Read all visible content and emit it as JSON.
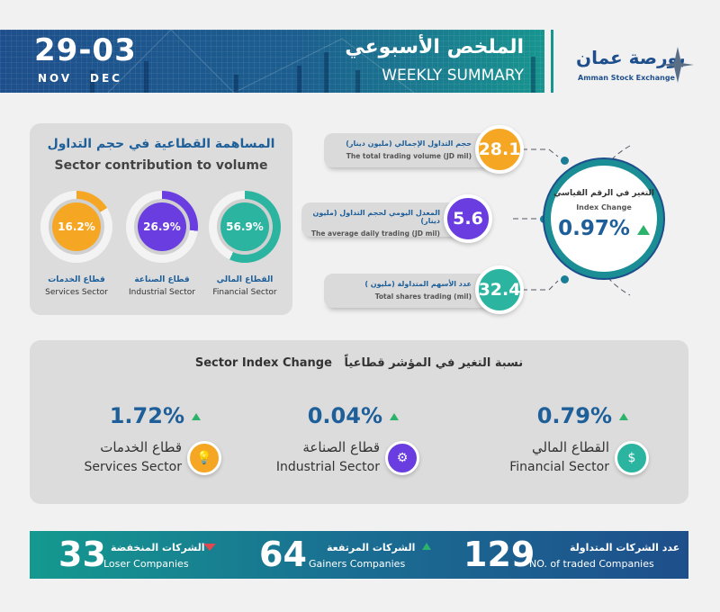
{
  "header": {
    "date_range": "29-03",
    "month_start": "NOV",
    "month_end": "DEC",
    "title_ar": "الملخص الأسبوعي",
    "title_en": "WEEKLY SUMMARY",
    "logo_ar": "بورصة عمان",
    "logo_en": "Amman Stock Exchange"
  },
  "contribution": {
    "title_ar": "المساهمة القطاعية في حجم التداول",
    "title_en": "Sector contribution to volume",
    "sectors": [
      {
        "value": "16.2%",
        "percent": 16.2,
        "name_ar": "قطاع الخدمات",
        "name_en": "Services Sector",
        "color": "#f5a623"
      },
      {
        "value": "26.9%",
        "percent": 26.9,
        "name_ar": "قطاع الصناعة",
        "name_en": "Industrial Sector",
        "color": "#6a3de0"
      },
      {
        "value": "56.9%",
        "percent": 56.9,
        "name_ar": "القطاع المالي",
        "name_en": "Financial Sector",
        "color": "#2bb5a0"
      }
    ]
  },
  "stats": [
    {
      "value": "28.1",
      "label_ar": "حجم التداول الإجمالي (مليون دينار)",
      "label_en": "The total trading volume (JD mil)",
      "color": "#f5a623"
    },
    {
      "value": "5.6",
      "label_ar": "المعدل اليومي لحجم التداول (مليون دينار)",
      "label_en": "The average daily trading (JD mil)",
      "color": "#6a3de0"
    },
    {
      "value": "32.4",
      "label_ar": "عدد الأسهم المتداولة (مليون )",
      "label_en": "Total shares trading (mil)",
      "color": "#2bb5a0"
    }
  ],
  "index_change": {
    "label_ar": "التغير في الرقم القياسي",
    "label_en": "Index Change",
    "value": "0.97%",
    "direction": "up"
  },
  "sector_index": {
    "title_ar": "نسبة التغير في المؤشر قطاعياً",
    "title_en": "Sector Index Change",
    "sectors": [
      {
        "value": "1.72%",
        "name_ar": "قطاع الخدمات",
        "name_en": "Services Sector",
        "icon": "lightbulb-icon",
        "color": "#f5a623",
        "direction": "up"
      },
      {
        "value": "0.04%",
        "name_ar": "قطاع الصناعة",
        "name_en": "Industrial Sector",
        "icon": "gear-icon",
        "color": "#6a3de0",
        "direction": "up"
      },
      {
        "value": "0.79%",
        "name_ar": "القطاع المالي",
        "name_en": "Financial Sector",
        "icon": "money-hand-icon",
        "color": "#2bb5a0",
        "direction": "up"
      }
    ]
  },
  "companies": {
    "traded": {
      "value": "129",
      "label_ar": "عدد الشركات المتداولة",
      "label_en": "NO. of traded Companies"
    },
    "gainers": {
      "value": "64",
      "label_ar": "الشركات المرتفعة",
      "label_en": "Gainers Companies"
    },
    "losers": {
      "value": "33",
      "label_ar": "الشركات المنخفضة",
      "label_en": "Loser Companies"
    }
  }
}
